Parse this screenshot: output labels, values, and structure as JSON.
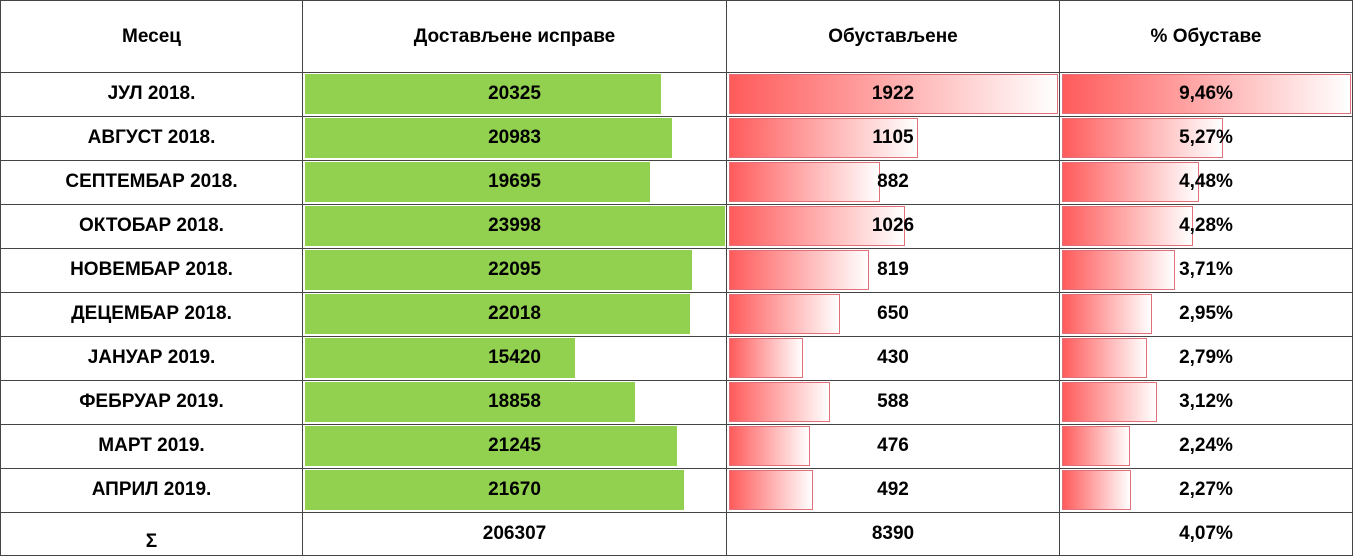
{
  "table": {
    "header": [
      "Месец",
      "Достављене исправе",
      "Обустављене",
      "% Обуставе"
    ],
    "rows": [
      [
        "ЈУЛ 2018.",
        20325,
        1922,
        {
          "value": 9.46,
          "label": "9,46%"
        }
      ],
      [
        "АВГУСТ 2018.",
        20983,
        1105,
        {
          "value": 5.27,
          "label": "5,27%"
        }
      ],
      [
        "СЕПТЕМБАР 2018.",
        19695,
        882,
        {
          "value": 4.48,
          "label": "4,48%"
        }
      ],
      [
        "ОКТОБАР 2018.",
        23998,
        1026,
        {
          "value": 4.28,
          "label": "4,28%"
        }
      ],
      [
        "НОВЕМБАР 2018.",
        22095,
        819,
        {
          "value": 3.71,
          "label": "3,71%"
        }
      ],
      [
        "ДЕЦЕМБАР 2018.",
        22018,
        650,
        {
          "value": 2.95,
          "label": "2,95%"
        }
      ],
      [
        "ЈАНУАР 2019.",
        15420,
        430,
        {
          "value": 2.79,
          "label": "2,79%"
        }
      ],
      [
        "ФЕБРУАР 2019.",
        18858,
        588,
        {
          "value": 3.12,
          "label": "3,12%"
        }
      ],
      [
        "МАРТ 2019.",
        21245,
        476,
        {
          "value": 2.24,
          "label": "2,24%"
        }
      ],
      [
        "АПРИЛ 2019.",
        21670,
        492,
        {
          "value": 2.27,
          "label": "2,27%"
        }
      ]
    ],
    "total": [
      "Σ",
      206307,
      8390,
      "4,07%"
    ]
  }
}
